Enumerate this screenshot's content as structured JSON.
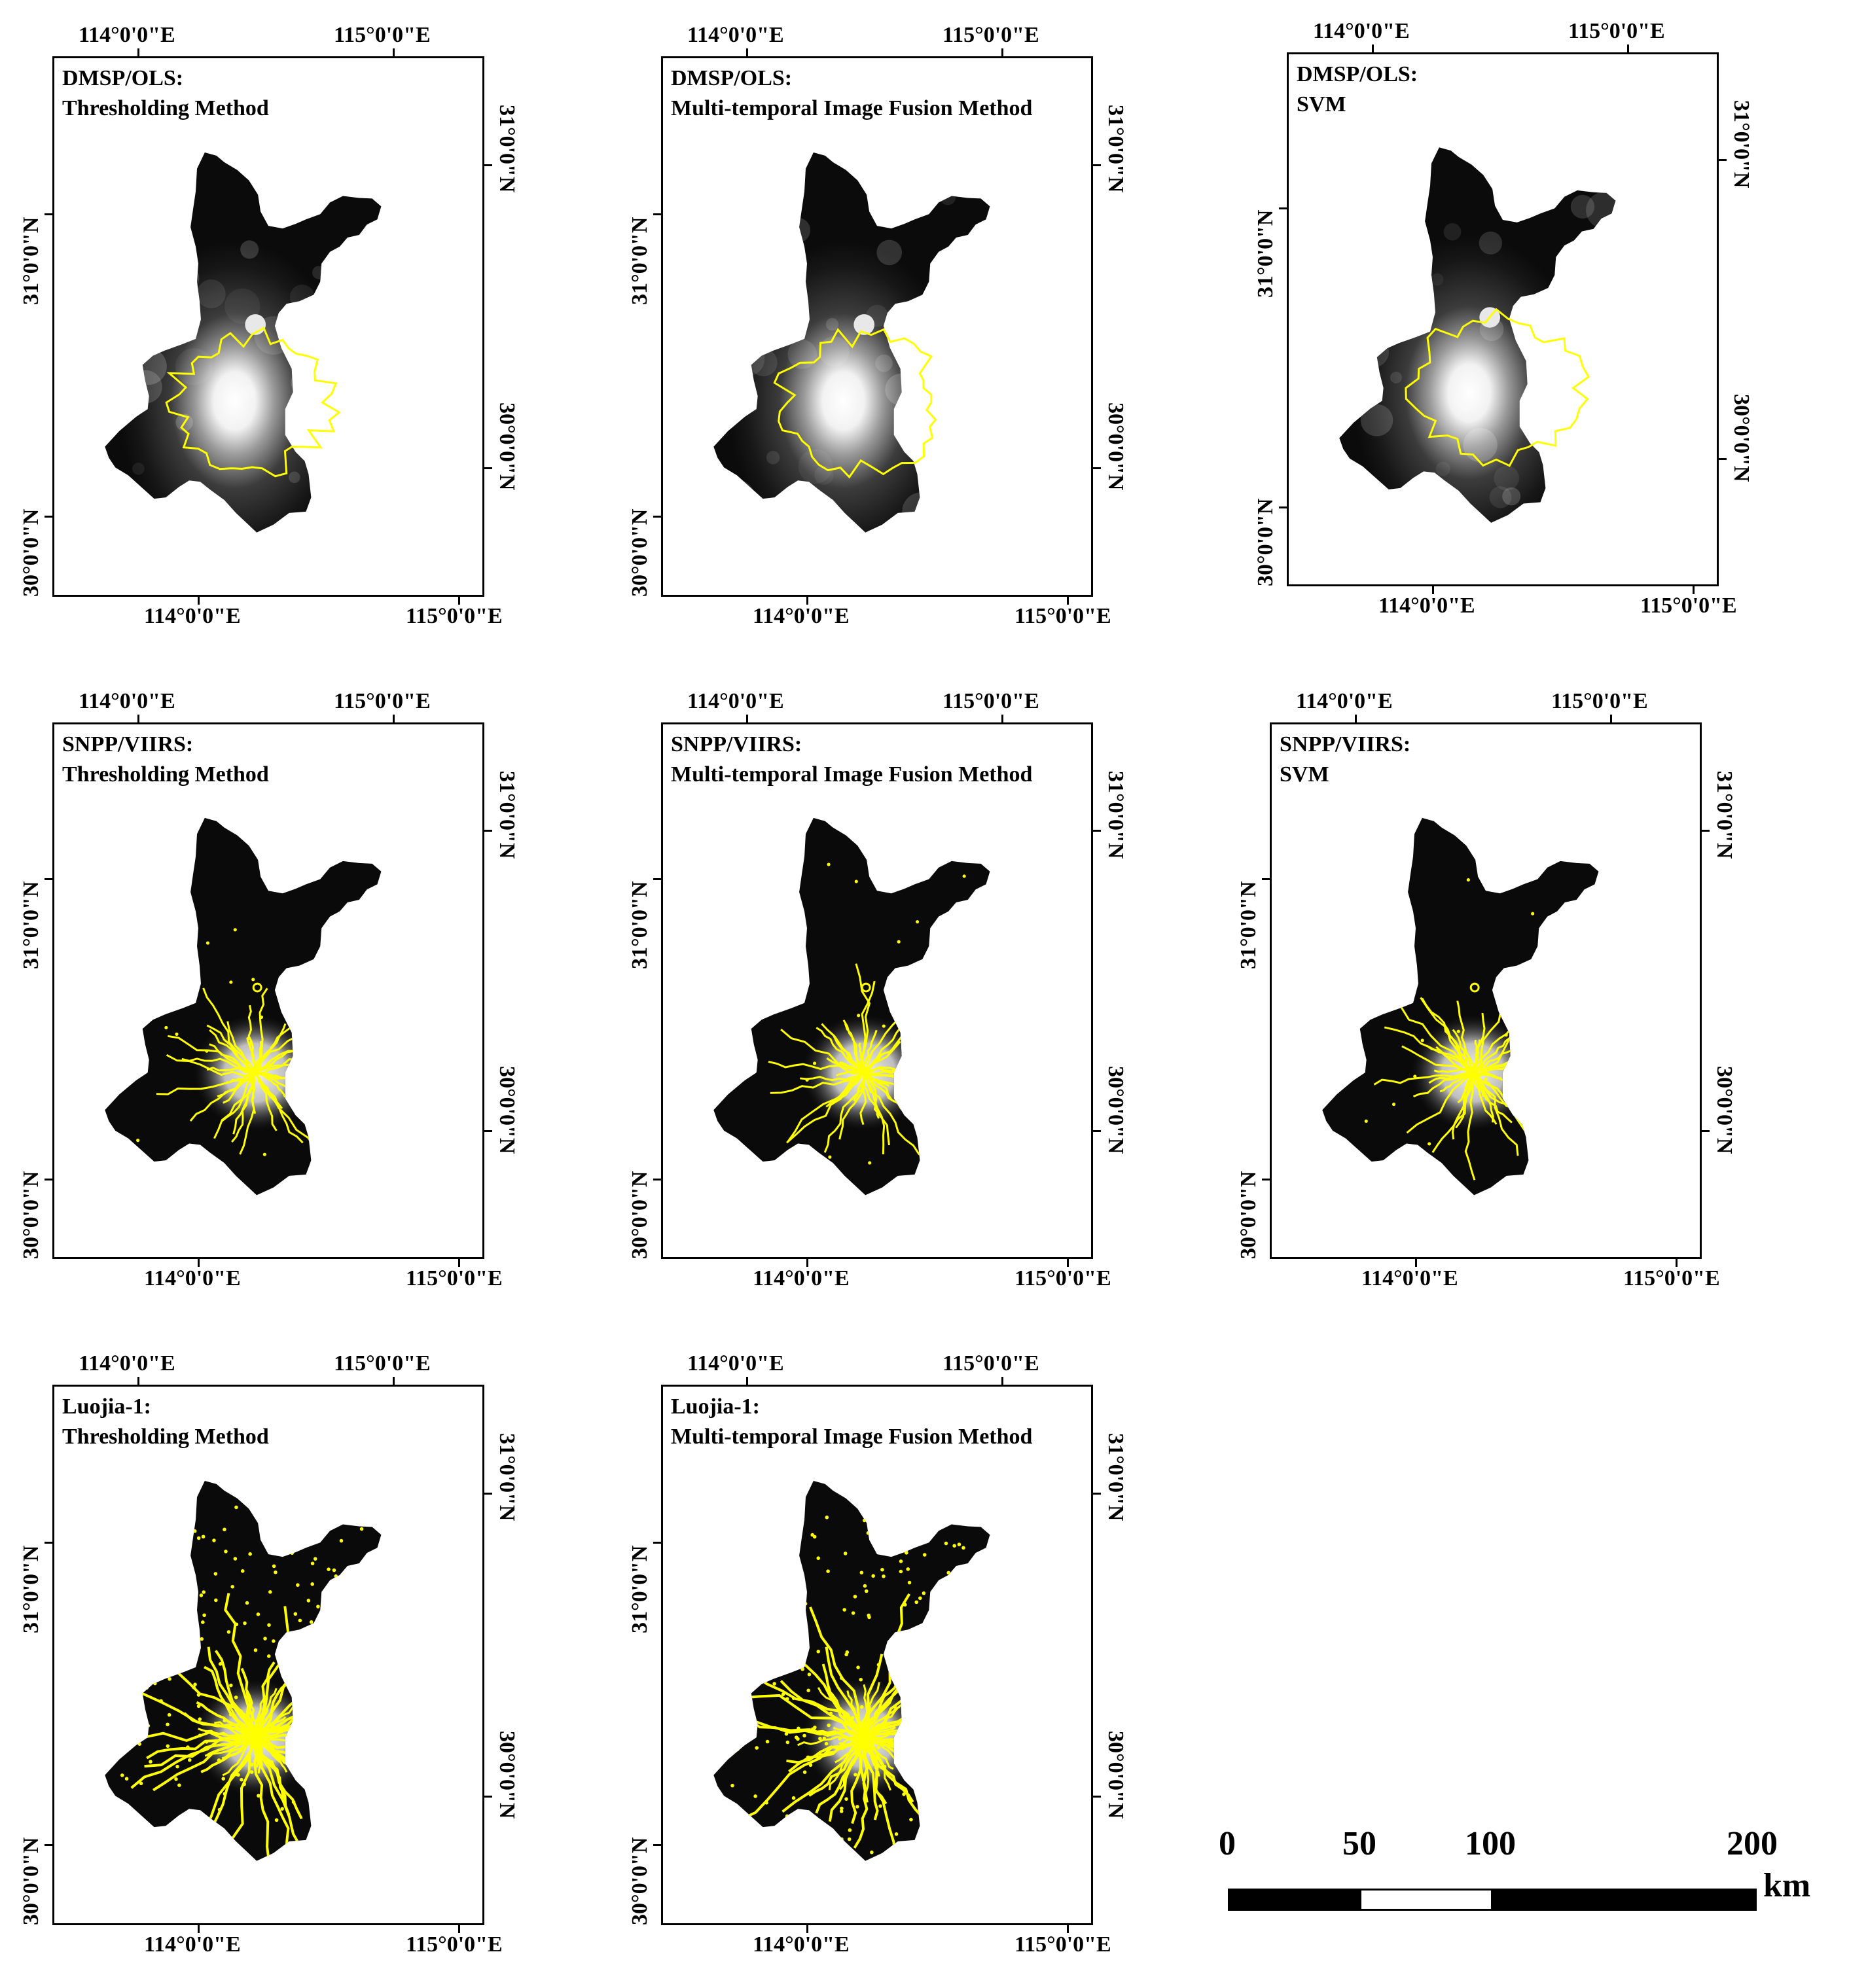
{
  "coords": {
    "lon_114": "114°0'0\"E",
    "lon_115": "115°0'0\"E",
    "lat_31": "31°0'0\"N",
    "lat_30": "30°0'0\"N"
  },
  "colors": {
    "boundary_fill_dark": "#0a0a0a",
    "urban_outline": "#ffff00",
    "frame": "#000000"
  },
  "panels": [
    {
      "id": "dmsp-threshold",
      "sensor": "DMSP/OLS:",
      "method": "Thresholding Method",
      "style": "dmsp"
    },
    {
      "id": "dmsp-fusion",
      "sensor": "DMSP/OLS:",
      "method": "Multi-temporal Image Fusion Method",
      "style": "dmsp"
    },
    {
      "id": "dmsp-svm",
      "sensor": "DMSP/OLS:",
      "method": "SVM",
      "style": "dmsp-svm"
    },
    {
      "id": "viirs-threshold",
      "sensor": "SNPP/VIIRS:",
      "method": "Thresholding Method",
      "style": "viirs"
    },
    {
      "id": "viirs-fusion",
      "sensor": "SNPP/VIIRS:",
      "method": "Multi-temporal Image Fusion Method",
      "style": "viirs"
    },
    {
      "id": "viirs-svm",
      "sensor": "SNPP/VIIRS:",
      "method": "SVM",
      "style": "viirs"
    },
    {
      "id": "luojia-threshold",
      "sensor": "Luojia-1:",
      "method": "Thresholding Method",
      "style": "luojia"
    },
    {
      "id": "luojia-fusion",
      "sensor": "Luojia-1:",
      "method": "Multi-temporal Image Fusion Method",
      "style": "luojia"
    }
  ],
  "scale_bar": {
    "labels": [
      "0",
      "50",
      "100",
      "200"
    ],
    "unit": "km"
  }
}
